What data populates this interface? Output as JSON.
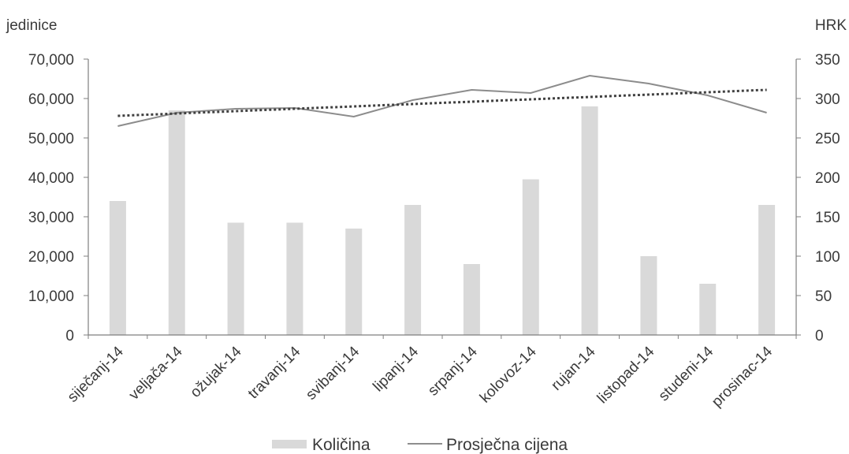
{
  "chart_data": {
    "type": "bar+line",
    "categories": [
      "siječanj-14",
      "veljača-14",
      "ožujak-14",
      "travanj-14",
      "svibanj-14",
      "lipanj-14",
      "srpanj-14",
      "kolovoz-14",
      "rujan-14",
      "listopad-14",
      "studeni-14",
      "prosinac-14"
    ],
    "series": [
      {
        "name": "Količina",
        "kind": "bar",
        "axis": "left",
        "color": "#d9d9d9",
        "values": [
          34000,
          57000,
          28500,
          28500,
          27000,
          33000,
          18000,
          39500,
          58000,
          20000,
          13000,
          33000
        ]
      },
      {
        "name": "Prosječna cijena",
        "kind": "line",
        "axis": "right",
        "color": "#8c8c8c",
        "values": [
          265,
          282,
          287,
          288,
          277,
          298,
          311,
          307,
          329,
          319,
          304,
          282
        ]
      },
      {
        "name": "",
        "kind": "trend",
        "axis": "right",
        "color": "#404040",
        "dashed": true,
        "values": [
          278,
          281,
          284,
          287,
          290,
          293,
          296,
          299,
          302,
          305,
          308,
          311
        ]
      }
    ],
    "ylabel_left": "jedinice",
    "ylabel_right": "HRK",
    "ylim_left": [
      0,
      70000
    ],
    "ylim_right": [
      0,
      350
    ],
    "yticks_left": [
      "0",
      "10,000",
      "20,000",
      "30,000",
      "40,000",
      "50,000",
      "60,000",
      "70,000"
    ],
    "yticks_right": [
      "0",
      "50",
      "100",
      "150",
      "200",
      "250",
      "300",
      "350"
    ],
    "grid": false,
    "legend_position": "bottom"
  }
}
